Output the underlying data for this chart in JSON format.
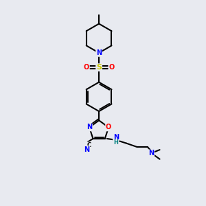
{
  "bg_color": "#e8eaf0",
  "line_color": "#000000",
  "bond_width": 1.5,
  "atom_colors": {
    "N": "#0000ff",
    "O": "#ff0000",
    "S": "#cccc00",
    "C": "#000000",
    "H": "#008080"
  },
  "figsize": [
    3.0,
    3.0
  ],
  "dpi": 100,
  "xlim": [
    0,
    10
  ],
  "ylim": [
    0,
    10
  ]
}
